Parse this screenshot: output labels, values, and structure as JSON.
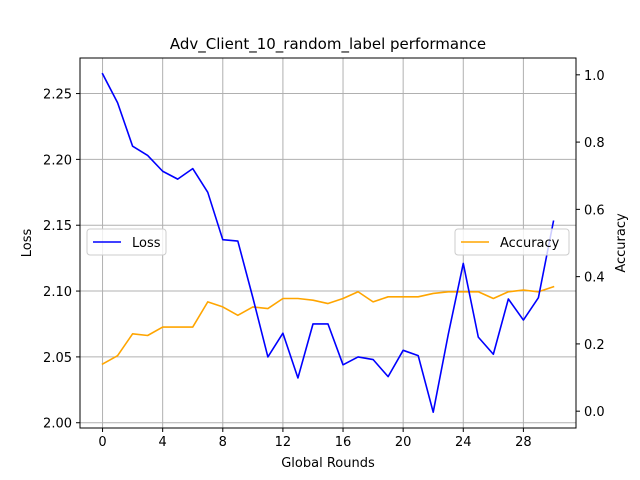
{
  "chart_data": {
    "type": "line",
    "title": "Adv_Client_10_random_label performance",
    "xlabel": "Global Rounds",
    "ylabel_left": "Loss",
    "ylabel_right": "Accuracy",
    "grid": true,
    "xlim": [
      -1.5,
      31.5
    ],
    "ylim_left": [
      1.996,
      2.277
    ],
    "ylim_right": [
      -0.05,
      1.05
    ],
    "x_ticks": [
      0,
      4,
      8,
      12,
      16,
      20,
      24,
      28
    ],
    "y_ticks_left": [
      2.0,
      2.05,
      2.1,
      2.15,
      2.2,
      2.25
    ],
    "y_tick_labels_left": [
      "2.00",
      "2.05",
      "2.10",
      "2.15",
      "2.20",
      "2.25"
    ],
    "y_ticks_right": [
      0.0,
      0.2,
      0.4,
      0.6,
      0.8,
      1.0
    ],
    "y_tick_labels_right": [
      "0.0",
      "0.2",
      "0.4",
      "0.6",
      "0.8",
      "1.0"
    ],
    "x": [
      0,
      1,
      2,
      3,
      4,
      5,
      6,
      7,
      8,
      9,
      10,
      11,
      12,
      13,
      14,
      15,
      16,
      17,
      18,
      19,
      20,
      21,
      22,
      23,
      24,
      25,
      26,
      27,
      28,
      29,
      30
    ],
    "series": [
      {
        "name": "Loss",
        "axis": "left",
        "color": "#0000ff",
        "legend_position": "center-left",
        "values": [
          2.265,
          2.243,
          2.21,
          2.203,
          2.191,
          2.185,
          2.193,
          2.175,
          2.139,
          2.138,
          2.095,
          2.05,
          2.068,
          2.034,
          2.075,
          2.075,
          2.044,
          2.05,
          2.048,
          2.035,
          2.055,
          2.051,
          2.008,
          2.067,
          2.121,
          2.065,
          2.052,
          2.094,
          2.078,
          2.095,
          2.153
        ]
      },
      {
        "name": "Accuracy",
        "axis": "right",
        "color": "#ffa500",
        "legend_position": "center-right",
        "values": [
          0.14,
          0.165,
          0.23,
          0.225,
          0.25,
          0.25,
          0.25,
          0.325,
          0.31,
          0.285,
          0.31,
          0.305,
          0.335,
          0.335,
          0.33,
          0.32,
          0.335,
          0.355,
          0.325,
          0.34,
          0.34,
          0.34,
          0.35,
          0.355,
          0.355,
          0.355,
          0.335,
          0.355,
          0.36,
          0.355,
          0.37
        ]
      }
    ]
  }
}
